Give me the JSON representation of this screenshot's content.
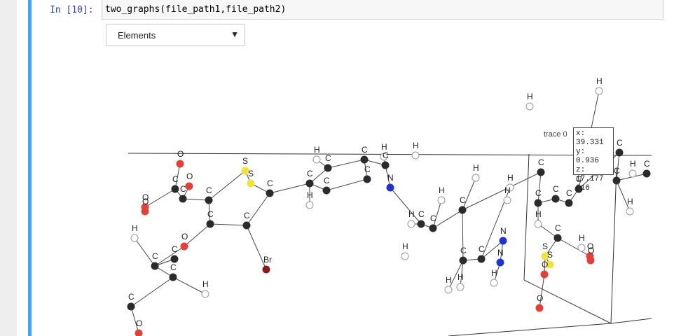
{
  "cell": {
    "prompt": "In [10]:",
    "code": "two_graphs(file_path1,file_path2)"
  },
  "dropdown": {
    "selected": "Elements",
    "arrow_icon": "caret-down-icon"
  },
  "hover_label": {
    "trace_name": "trace 0",
    "lines": [
      "x: 39.331",
      "y: 0.936",
      "z: 17.177",
      "C16"
    ]
  },
  "colors": {
    "cell_accent": "#42a5f5",
    "carbon": "#2b2b2b",
    "oxygen": "#e0413a",
    "nitrogen": "#2233cc",
    "sulfur": "#f0e43a",
    "bromine": "#8b1a1a",
    "hydrogen": "#ffffff"
  },
  "atom_labels": [
    "O",
    "C",
    "C",
    "C",
    "C",
    "O",
    "O",
    "S",
    "S",
    "C",
    "C",
    "C",
    "C",
    "C",
    "H",
    "C",
    "C",
    "C",
    "C",
    "H",
    "H",
    "H",
    "C",
    "H",
    "N",
    "H",
    "C",
    "C",
    "C",
    "H",
    "H",
    "H",
    "H",
    "H",
    "Br",
    "H",
    "O",
    "H",
    "C",
    "C",
    "O",
    "O",
    "H",
    "C",
    "C",
    "C",
    "C",
    "C",
    "C",
    "C",
    "H",
    "H",
    "H",
    "N",
    "N",
    "H",
    "C",
    "S",
    "H",
    "O",
    "O",
    "O",
    "H",
    "C",
    "H",
    "H",
    "C",
    "H",
    "C",
    "C",
    "C",
    "C",
    "H",
    "H",
    "C"
  ]
}
